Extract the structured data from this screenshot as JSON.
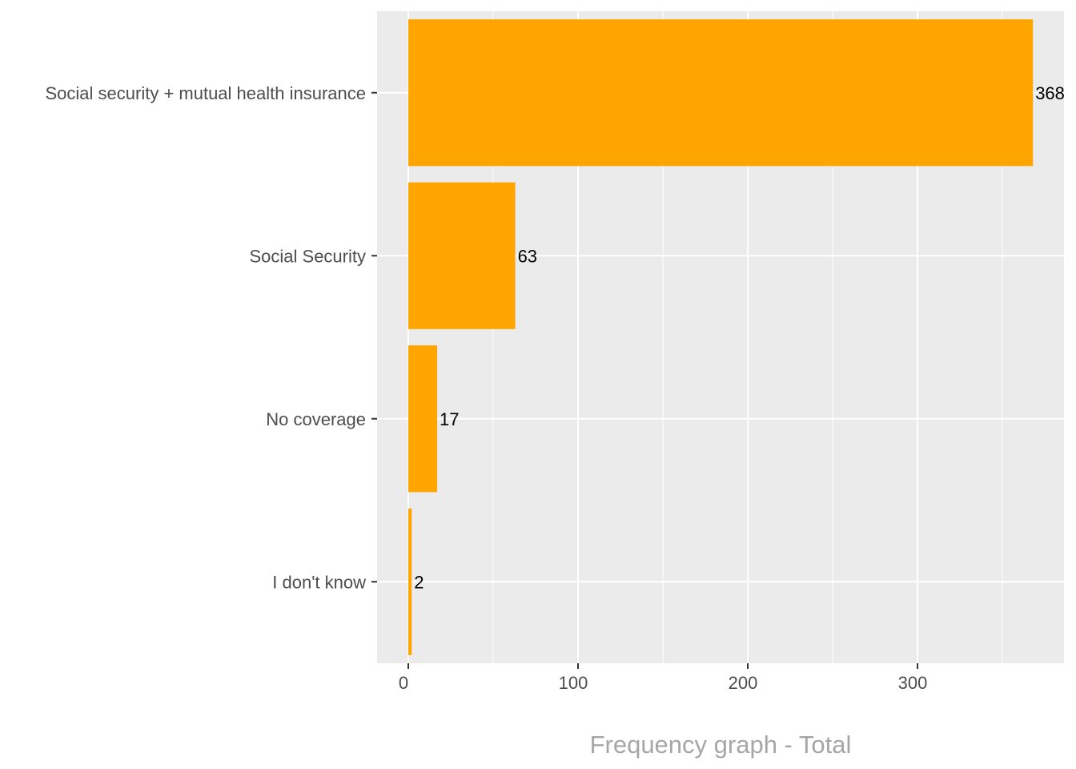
{
  "chart_data": {
    "type": "bar",
    "orientation": "horizontal",
    "title": "Frequency graph - Total",
    "xlabel": "",
    "ylabel": "",
    "categories": [
      "Social security + mutual health insurance",
      "Social Security",
      "No coverage",
      "I don't know"
    ],
    "values": [
      368,
      63,
      17,
      2
    ],
    "data_labels": [
      "368",
      "63",
      "17",
      "2"
    ],
    "x_ticks": [
      0,
      100,
      200,
      300
    ],
    "x_tick_labels": [
      "0",
      "100",
      "200",
      "300"
    ],
    "xlim": [
      -18.4,
      386.3
    ],
    "grid": true,
    "bar_color": "#FFA500",
    "panel_color": "#EBEBEB"
  }
}
